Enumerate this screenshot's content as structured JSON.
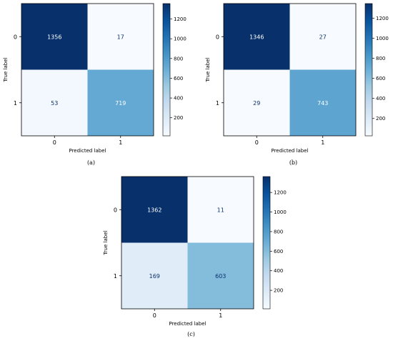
{
  "colors": {
    "low": "#f7fbff",
    "high": "#08306b",
    "text_on_dark": "#ffffff",
    "text_on_light": "#08306b",
    "frame": "#000000"
  },
  "chart_data": [
    {
      "type": "heatmap",
      "caption": "(a)",
      "xlabel": "Predicted label",
      "ylabel": "True label",
      "x_ticks": [
        "0",
        "1"
      ],
      "y_ticks": [
        "0",
        "1"
      ],
      "matrix": [
        [
          1356,
          17
        ],
        [
          53,
          719
        ]
      ],
      "colorbar": {
        "min": 17,
        "max": 1356,
        "ticks": [
          200,
          400,
          600,
          800,
          1000,
          1200
        ]
      }
    },
    {
      "type": "heatmap",
      "caption": "(b)",
      "xlabel": "Predicted label",
      "ylabel": "True label",
      "x_ticks": [
        "0",
        "1"
      ],
      "y_ticks": [
        "0",
        "1"
      ],
      "matrix": [
        [
          1346,
          27
        ],
        [
          29,
          743
        ]
      ],
      "colorbar": {
        "min": 27,
        "max": 1346,
        "ticks": [
          200,
          400,
          600,
          800,
          1000,
          1200
        ]
      }
    },
    {
      "type": "heatmap",
      "caption": "(c)",
      "xlabel": "Predicted label",
      "ylabel": "True label",
      "x_ticks": [
        "0",
        "1"
      ],
      "y_ticks": [
        "0",
        "1"
      ],
      "matrix": [
        [
          1362,
          11
        ],
        [
          169,
          603
        ]
      ],
      "colorbar": {
        "min": 11,
        "max": 1362,
        "ticks": [
          200,
          400,
          600,
          800,
          1000,
          1200
        ]
      }
    }
  ]
}
